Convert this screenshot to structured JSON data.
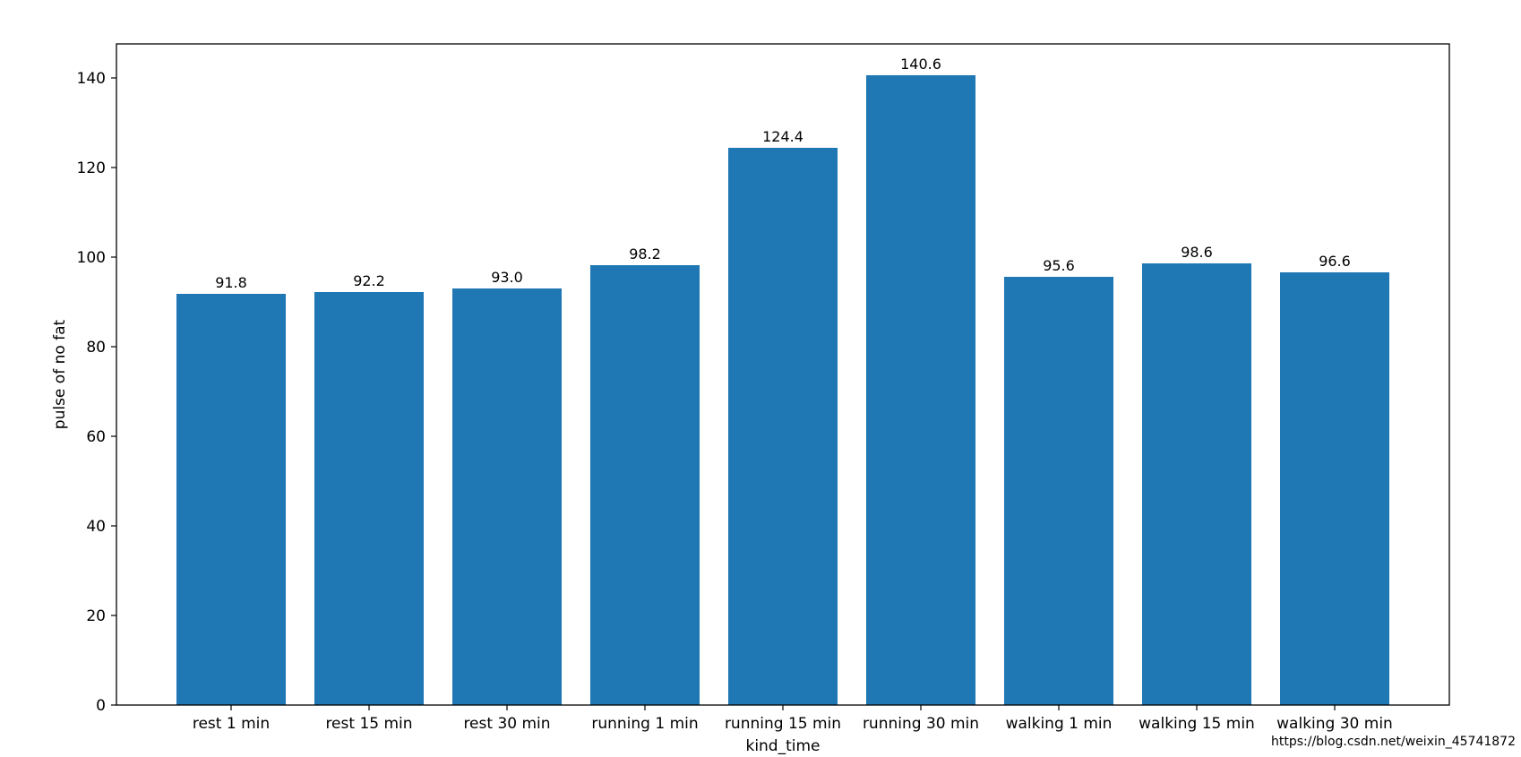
{
  "chart_data": {
    "type": "bar",
    "categories": [
      "rest 1 min",
      "rest 15 min",
      "rest 30 min",
      "running 1 min",
      "running 15 min",
      "running 30 min",
      "walking 1 min",
      "walking 15 min",
      "walking 30 min"
    ],
    "values": [
      91.8,
      92.2,
      93.0,
      98.2,
      124.4,
      140.6,
      95.6,
      98.6,
      96.6
    ],
    "data_labels": [
      "91.8",
      "92.2",
      "93.0",
      "98.2",
      "124.4",
      "140.6",
      "95.6",
      "98.6",
      "96.6"
    ],
    "title": "",
    "xlabel": "kind_time",
    "ylabel": "pulse of no fat",
    "ylim": [
      0,
      147.6
    ],
    "yticks": [
      0,
      20,
      40,
      60,
      80,
      100,
      120,
      140
    ],
    "grid": false,
    "bar_color": "#1f77b4"
  },
  "watermark": "https://blog.csdn.net/weixin_45741872"
}
